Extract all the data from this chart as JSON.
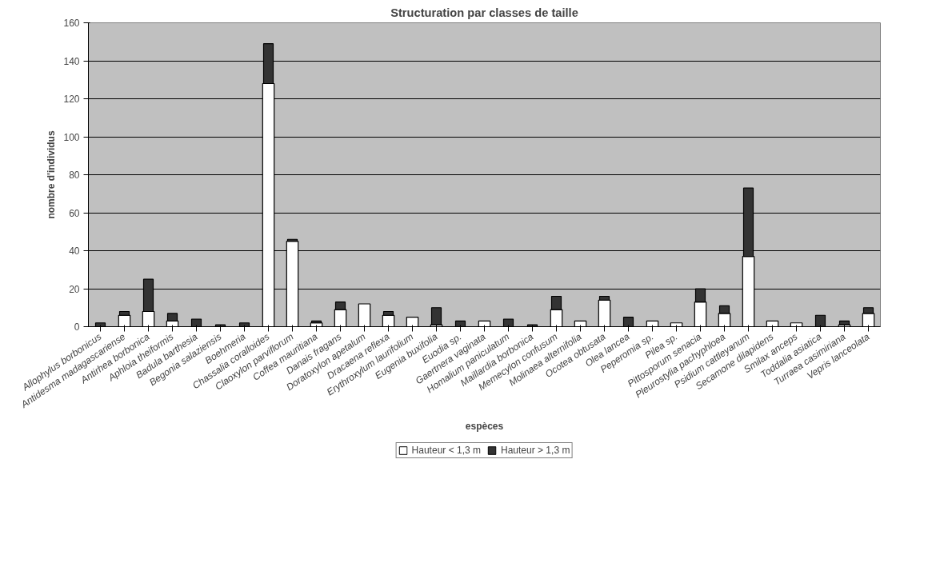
{
  "chart_data": {
    "type": "bar",
    "stacked": true,
    "title": "Structuration par classes de taille",
    "xlabel": "espèces",
    "ylabel": "nombre d'individus",
    "categories": [
      "Allophylus borbonicus",
      "Antidesma madagascariense",
      "Antirhea borbonica",
      "Aphloia theiformis",
      "Badula barthesia",
      "Begonia salaziensis",
      "Boehmeria",
      "Chassalia coralloides",
      "Claoxylon parviflorum",
      "Coffea mauritiana",
      "Danais fragans",
      "Doratoxylon apetalum",
      "Dracaena reflexa",
      "Erythroxylum laurifolium",
      "Eugenia buxifolia",
      "Euodia sp.",
      "Gaertnera vaginata",
      "Homalium paniculatum",
      "Maillardia borbonica",
      "Memecylon confusum",
      "Molinaea alternifolia",
      "Ocotea obtusata",
      "Olea lancea",
      "Peperomia sp.",
      "Pilea sp.",
      "Pittosporum senacia",
      "Pleurostylia pachyphloea",
      "Psidium cattleyanum",
      "Secamone dilapidens",
      "Smilax anceps",
      "Toddalia asiatica",
      "Turraea casimiriana",
      "Vepris lanceolata"
    ],
    "series": [
      {
        "name": "Hauteur < 1,3 m",
        "color": "#ffffff",
        "values": [
          0,
          6,
          8,
          3,
          0,
          0,
          0,
          128,
          45,
          2,
          9,
          12,
          6,
          5,
          1,
          0,
          3,
          0,
          0,
          9,
          3,
          14,
          0,
          3,
          2,
          13,
          7,
          37,
          3,
          2,
          0,
          1,
          7
        ]
      },
      {
        "name": "Hauteur > 1,3 m",
        "color": "#333333",
        "values": [
          2,
          2,
          17,
          4,
          4,
          1,
          2,
          21,
          1,
          1,
          4,
          0,
          2,
          0,
          9,
          3,
          0,
          4,
          1,
          7,
          0,
          2,
          5,
          0,
          0,
          7,
          4,
          36,
          0,
          0,
          6,
          2,
          3
        ]
      }
    ],
    "ylim": [
      0,
      160
    ],
    "yticks": [
      0,
      20,
      40,
      60,
      80,
      100,
      120,
      140,
      160
    ],
    "grid": "y",
    "legend": "bottom"
  }
}
